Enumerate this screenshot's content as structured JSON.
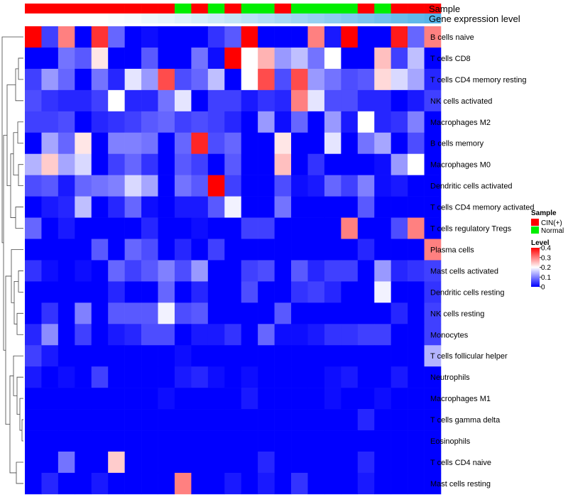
{
  "chart_data": {
    "type": "heatmap",
    "title": "",
    "annotation_titles": {
      "sample": "Sample",
      "gene_level": "Gene expression level"
    },
    "sample_groups": [
      "CIN(+)",
      "CIN(+)",
      "CIN(+)",
      "CIN(+)",
      "CIN(+)",
      "CIN(+)",
      "CIN(+)",
      "CIN(+)",
      "CIN(+)",
      "Normal",
      "CIN(+)",
      "Normal",
      "CIN(+)",
      "Normal",
      "Normal",
      "CIN(+)",
      "Normal",
      "Normal",
      "Normal",
      "Normal",
      "CIN(+)",
      "Normal",
      "CIN(+)",
      "CIN(+)",
      "CIN(+)"
    ],
    "gene_level_row": [
      0,
      0,
      0,
      0,
      0,
      0.01,
      0.02,
      0.04,
      0.05,
      0.07,
      0.09,
      0.11,
      0.13,
      0.15,
      0.17,
      0.19,
      0.21,
      0.23,
      0.25,
      0.27,
      0.29,
      0.31,
      0.33,
      0.35,
      0.37
    ],
    "rows": [
      "B cells naive",
      "T cells CD8",
      "T cells CD4 memory resting",
      "NK cells activated",
      "Macrophages M2",
      "B cells memory",
      "Macrophages M0",
      "Dendritic cells activated",
      "T cells CD4 memory activated",
      "T cells regulatory  Tregs",
      "Plasma cells",
      "Mast cells activated",
      "Dendritic cells resting",
      "NK cells resting",
      "Monocytes",
      "T cells follicular helper",
      "Neutrophils",
      "Macrophages M1",
      "T cells gamma delta",
      "Eosinophils",
      "T cells CD4 naive",
      "Mast cells resting"
    ],
    "values": [
      [
        0.4,
        0.05,
        0.3,
        0.0,
        0.36,
        0.08,
        0.0,
        0.01,
        0.0,
        0.0,
        0.0,
        0.04,
        0.07,
        0.4,
        0.0,
        0.0,
        0.0,
        0.3,
        0.02,
        0.4,
        0.0,
        0.0,
        0.38,
        0.08,
        0.3
      ],
      [
        0.0,
        0.0,
        0.09,
        0.07,
        0.22,
        0.0,
        0.0,
        0.07,
        0.0,
        0.0,
        0.09,
        0.01,
        0.4,
        0.2,
        0.26,
        0.12,
        0.15,
        0.09,
        0.2,
        0.0,
        0.0,
        0.25,
        0.05,
        0.15,
        0.0
      ],
      [
        0.05,
        0.12,
        0.08,
        0.0,
        0.09,
        0.03,
        0.18,
        0.12,
        0.34,
        0.06,
        0.08,
        0.15,
        0.0,
        0.2,
        0.34,
        0.06,
        0.34,
        0.12,
        0.09,
        0.06,
        0.07,
        0.23,
        0.17,
        0.13,
        0.03
      ],
      [
        0.06,
        0.04,
        0.03,
        0.03,
        0.05,
        0.2,
        0.03,
        0.03,
        0.09,
        0.18,
        0.0,
        0.05,
        0.05,
        0.02,
        0.04,
        0.03,
        0.3,
        0.18,
        0.06,
        0.06,
        0.03,
        0.03,
        0.0,
        0.02,
        0.05
      ],
      [
        0.05,
        0.05,
        0.06,
        0.0,
        0.03,
        0.04,
        0.05,
        0.07,
        0.08,
        0.05,
        0.06,
        0.05,
        0.03,
        0.0,
        0.12,
        0.01,
        0.08,
        0.0,
        0.12,
        0.02,
        0.2,
        0.03,
        0.04,
        0.1,
        0.0
      ],
      [
        0.0,
        0.13,
        0.08,
        0.22,
        0.0,
        0.1,
        0.1,
        0.09,
        0.0,
        0.08,
        0.37,
        0.06,
        0.08,
        0.0,
        0.0,
        0.22,
        0.0,
        0.0,
        0.18,
        0.0,
        0.09,
        0.13,
        0.0,
        0.06,
        0.0
      ],
      [
        0.14,
        0.24,
        0.13,
        0.17,
        0.0,
        0.05,
        0.08,
        0.04,
        0.0,
        0.07,
        0.05,
        0.0,
        0.07,
        0.0,
        0.0,
        0.25,
        0.0,
        0.04,
        0.0,
        0.0,
        0.0,
        0.01,
        0.12,
        0.2,
        0.0
      ],
      [
        0.06,
        0.07,
        0.02,
        0.08,
        0.09,
        0.1,
        0.17,
        0.13,
        0.0,
        0.09,
        0.07,
        0.4,
        0.05,
        0.0,
        0.0,
        0.06,
        0.01,
        0.02,
        0.08,
        0.05,
        0.1,
        0.01,
        0.02,
        0.0,
        0.0
      ],
      [
        0.0,
        0.02,
        0.03,
        0.15,
        0.0,
        0.03,
        0.08,
        0.01,
        0.0,
        0.02,
        0.02,
        0.07,
        0.19,
        0.0,
        0.0,
        0.09,
        0.0,
        0.0,
        0.0,
        0.0,
        0.07,
        0.0,
        0.0,
        0.0,
        0.0
      ],
      [
        0.08,
        0.0,
        0.02,
        0.0,
        0.0,
        0.0,
        0.0,
        0.03,
        0.0,
        0.0,
        0.01,
        0.0,
        0.0,
        0.05,
        0.05,
        0.0,
        0.0,
        0.0,
        0.0,
        0.3,
        0.0,
        0.0,
        0.06,
        0.3,
        0.0
      ],
      [
        0.0,
        0.0,
        0.0,
        0.0,
        0.07,
        0.0,
        0.08,
        0.06,
        0.0,
        0.03,
        0.0,
        0.05,
        0.0,
        0.0,
        0.0,
        0.0,
        0.0,
        0.0,
        0.0,
        0.0,
        0.03,
        0.0,
        0.0,
        0.0,
        0.3
      ],
      [
        0.04,
        0.01,
        0.0,
        0.01,
        0.0,
        0.08,
        0.05,
        0.07,
        0.1,
        0.06,
        0.12,
        0.0,
        0.0,
        0.05,
        0.06,
        0.0,
        0.07,
        0.03,
        0.05,
        0.05,
        0.0,
        0.12,
        0.03,
        0.04,
        0.05
      ],
      [
        0.0,
        0.0,
        0.0,
        0.0,
        0.0,
        0.03,
        0.0,
        0.0,
        0.08,
        0.0,
        0.03,
        0.0,
        0.0,
        0.06,
        0.0,
        0.0,
        0.04,
        0.05,
        0.03,
        0.0,
        0.0,
        0.19,
        0.0,
        0.0,
        0.04
      ],
      [
        0.0,
        0.04,
        0.0,
        0.1,
        0.0,
        0.07,
        0.07,
        0.07,
        0.19,
        0.06,
        0.07,
        0.0,
        0.0,
        0.0,
        0.0,
        0.07,
        0.0,
        0.0,
        0.0,
        0.0,
        0.0,
        0.0,
        0.03,
        0.0,
        0.05
      ],
      [
        0.03,
        0.11,
        0.0,
        0.05,
        0.0,
        0.02,
        0.03,
        0.06,
        0.06,
        0.0,
        0.02,
        0.02,
        0.04,
        0.0,
        0.08,
        0.01,
        0.01,
        0.02,
        0.04,
        0.04,
        0.05,
        0.05,
        0.0,
        0.0,
        0.05
      ],
      [
        0.05,
        0.02,
        0.0,
        0.0,
        0.0,
        0.0,
        0.0,
        0.0,
        0.0,
        0.01,
        0.0,
        0.0,
        0.0,
        0.0,
        0.0,
        0.0,
        0.0,
        0.0,
        0.0,
        0.0,
        0.0,
        0.0,
        0.0,
        0.0,
        0.14
      ],
      [
        0.02,
        0.0,
        0.01,
        0.0,
        0.05,
        0.0,
        0.0,
        0.0,
        0.0,
        0.02,
        0.03,
        0.01,
        0.0,
        0.01,
        0.0,
        0.0,
        0.0,
        0.0,
        0.01,
        0.02,
        0.0,
        0.0,
        0.02,
        0.0,
        0.0
      ],
      [
        0.0,
        0.0,
        0.0,
        0.0,
        0.0,
        0.0,
        0.0,
        0.0,
        0.01,
        0.0,
        0.0,
        0.0,
        0.0,
        0.02,
        0.0,
        0.0,
        0.0,
        0.0,
        0.01,
        0.0,
        0.0,
        0.01,
        0.0,
        0.0,
        0.0
      ],
      [
        0.0,
        0.0,
        0.0,
        0.0,
        0.0,
        0.0,
        0.0,
        0.0,
        0.0,
        0.0,
        0.0,
        0.0,
        0.0,
        0.0,
        0.0,
        0.0,
        0.0,
        0.0,
        0.0,
        0.0,
        0.03,
        0.0,
        0.0,
        0.0,
        0.0
      ],
      [
        0.0,
        0.0,
        0.0,
        0.0,
        0.0,
        0.0,
        0.0,
        0.0,
        0.0,
        0.0,
        0.0,
        0.0,
        0.0,
        0.0,
        0.0,
        0.0,
        0.0,
        0.0,
        0.0,
        0.0,
        0.0,
        0.0,
        0.0,
        0.0,
        0.0
      ],
      [
        0.0,
        0.0,
        0.09,
        0.0,
        0.0,
        0.24,
        0.0,
        0.0,
        0.0,
        0.0,
        0.0,
        0.0,
        0.0,
        0.0,
        0.03,
        0.0,
        0.0,
        0.0,
        0.0,
        0.0,
        0.03,
        0.0,
        0.0,
        0.0,
        0.0
      ],
      [
        0.0,
        0.03,
        0.0,
        0.0,
        0.02,
        0.0,
        0.0,
        0.0,
        0.0,
        0.3,
        0.0,
        0.0,
        0.02,
        0.0,
        0.02,
        0.0,
        0.04,
        0.0,
        0.0,
        0.0,
        0.02,
        0.0,
        0.0,
        0.0,
        0.0
      ]
    ],
    "legend": {
      "sample_title": "Sample",
      "sample_items": [
        {
          "label": "CIN(+)",
          "color": "#ff0000"
        },
        {
          "label": "Normal",
          "color": "#00ee00"
        }
      ],
      "level_title": "Level",
      "level_ticks": [
        "0",
        "0.1",
        "0.2",
        "0.3",
        "0.4"
      ],
      "level_tick_values": [
        0,
        0.1,
        0.2,
        0.3,
        0.4
      ],
      "range": [
        0,
        0.4
      ]
    },
    "colors": {
      "low": "#0000ff",
      "mid": "#ffffff",
      "high": "#ff0000",
      "gene_low": "#ffffff",
      "gene_high": "#56b4e9"
    }
  }
}
